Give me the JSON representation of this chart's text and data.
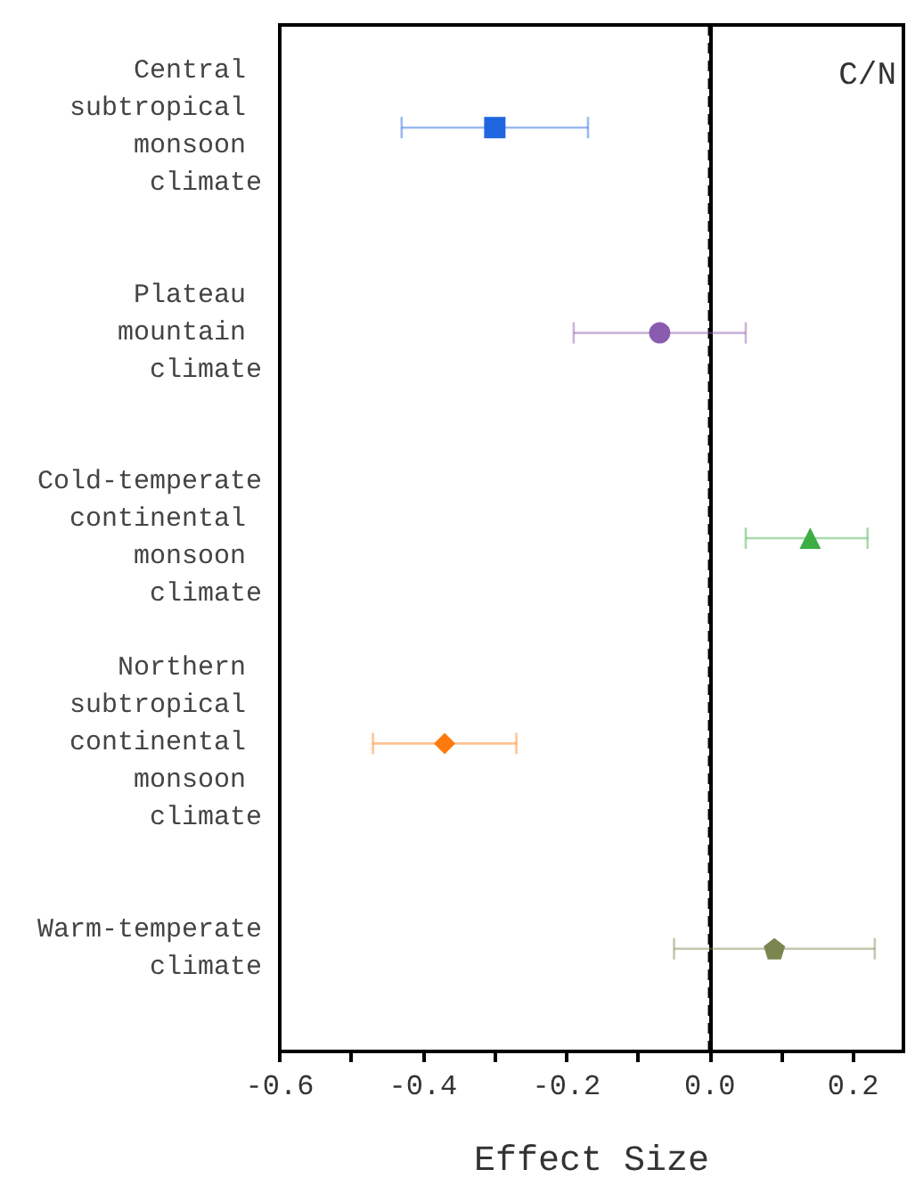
{
  "chart_data": {
    "type": "scatter",
    "orientation": "horizontal",
    "xlabel": "Effect Size",
    "categories": [
      "Central subtropical monsoon climate",
      "Plateau mountain climate",
      "Cold-temperate continental monsoon climate",
      "Northern subtropical continental monsoon climate",
      "Warm-temperate climate"
    ],
    "series": [
      {
        "color": "#1f66e0",
        "marker": "square",
        "values": [
          -0.3,
          null,
          null,
          null,
          null
        ],
        "errors": [
          [
            -0.43,
            -0.17
          ],
          null,
          null,
          null,
          null
        ]
      },
      {
        "color": "#8a5cb0",
        "marker": "circle",
        "values": [
          null,
          -0.07,
          null,
          null,
          null
        ],
        "errors": [
          null,
          [
            -0.19,
            0.05
          ],
          null,
          null,
          null
        ]
      },
      {
        "color": "#3cae44",
        "marker": "triangle",
        "values": [
          null,
          null,
          0.14,
          null,
          null
        ],
        "errors": [
          null,
          null,
          [
            0.05,
            0.22
          ],
          null,
          null
        ]
      },
      {
        "color": "#ff7a0e",
        "marker": "diamond",
        "values": [
          null,
          null,
          null,
          -0.37,
          null
        ],
        "errors": [
          null,
          null,
          null,
          [
            -0.47,
            -0.27
          ],
          null
        ]
      },
      {
        "color": "#7a8550",
        "values": [
          null,
          null,
          null,
          null,
          0.09
        ],
        "errors": [
          null,
          null,
          null,
          null,
          [
            -0.05,
            0.23
          ]
        ]
      }
    ],
    "xlim": [
      -0.6,
      0.27
    ],
    "xticks": [
      -0.6,
      {
        "value": -0.5,
        "label": null
      },
      -0.4,
      {
        "value": -0.3,
        "label": null
      },
      -0.2,
      {
        "value": -0.1,
        "label": null
      },
      {
        "value": 0,
        "label": "0.0"
      },
      {
        "value": 0.1,
        "label": null
      },
      0.2
    ],
    "ref_lines": [
      {
        "axis": "x",
        "value": 0,
        "line_style": "dashed",
        "color": "#000000"
      }
    ],
    "annotations": [
      "C/N"
    ],
    "grid": false
  }
}
